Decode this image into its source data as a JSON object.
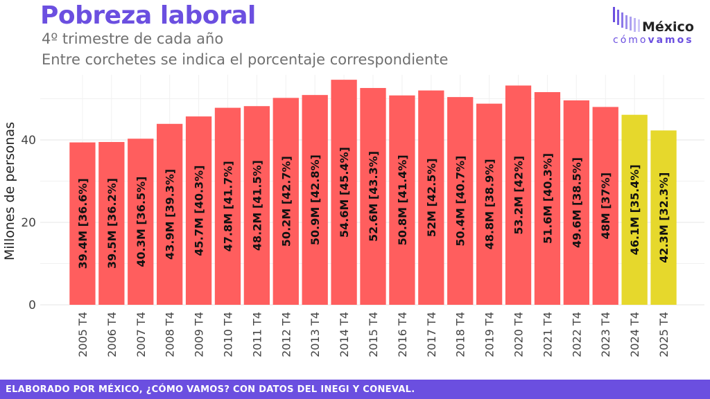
{
  "header": {
    "title": "Pobreza laboral",
    "subtitle_line1": "4º trimestre de cada año",
    "subtitle_line2": "Entre corchetes se indica el porcentaje correspondiente"
  },
  "logo": {
    "word": "México",
    "tagline_light": "cómo",
    "tagline_bold": "vamos"
  },
  "footer": {
    "text": "ELABORADO POR MÉXICO, ¿CÓMO VAMOS? CON DATOS DEL INEGI Y CONEVAL."
  },
  "colors": {
    "brand": "#6b4fe0",
    "bar_default": "#ff5e5e",
    "bar_highlight": "#e6d82c"
  },
  "chart_data": {
    "type": "bar",
    "categories": [
      "2005 T4",
      "2006 T4",
      "2007 T4",
      "2008 T4",
      "2009 T4",
      "2010 T4",
      "2011 T4",
      "2012 T4",
      "2013 T4",
      "2014 T4",
      "2015 T4",
      "2016 T4",
      "2017 T4",
      "2018 T4",
      "2019 T4",
      "2020 T4",
      "2021 T4",
      "2022 T4",
      "2023 T4",
      "2024 T4",
      "2025 T4"
    ],
    "values": [
      39.4,
      39.5,
      40.3,
      43.9,
      45.7,
      47.8,
      48.2,
      50.2,
      50.9,
      54.6,
      52.6,
      50.8,
      52.0,
      50.4,
      48.8,
      53.2,
      51.6,
      49.6,
      48.0,
      46.1,
      42.3
    ],
    "labels": [
      "39.4M [36.6%]",
      "39.5M [36.2%]",
      "40.3M [36.5%]",
      "43.9M [39.3%]",
      "45.7M [40.3%]",
      "47.8M [41.7%]",
      "48.2M [41.5%]",
      "50.2M [42.7%]",
      "50.9M [42.8%]",
      "54.6M [45.4%]",
      "52.6M [43.3%]",
      "50.8M [41.4%]",
      "52M [42.5%]",
      "50.4M [40.7%]",
      "48.8M [38.9%]",
      "53.2M [42%]",
      "51.6M [40.3%]",
      "49.6M [38.5%]",
      "48M [37%]",
      "46.1M [35.4%]",
      "42.3M [32.3%]"
    ],
    "highlighted": [
      "2024 T4",
      "2025 T4"
    ],
    "title": "Pobreza laboral",
    "xlabel": "",
    "ylabel": "Millones de personas",
    "ylim": [
      0,
      56
    ],
    "yticks": [
      0,
      20,
      40
    ],
    "grid": true,
    "label_orientation": "vertical"
  }
}
